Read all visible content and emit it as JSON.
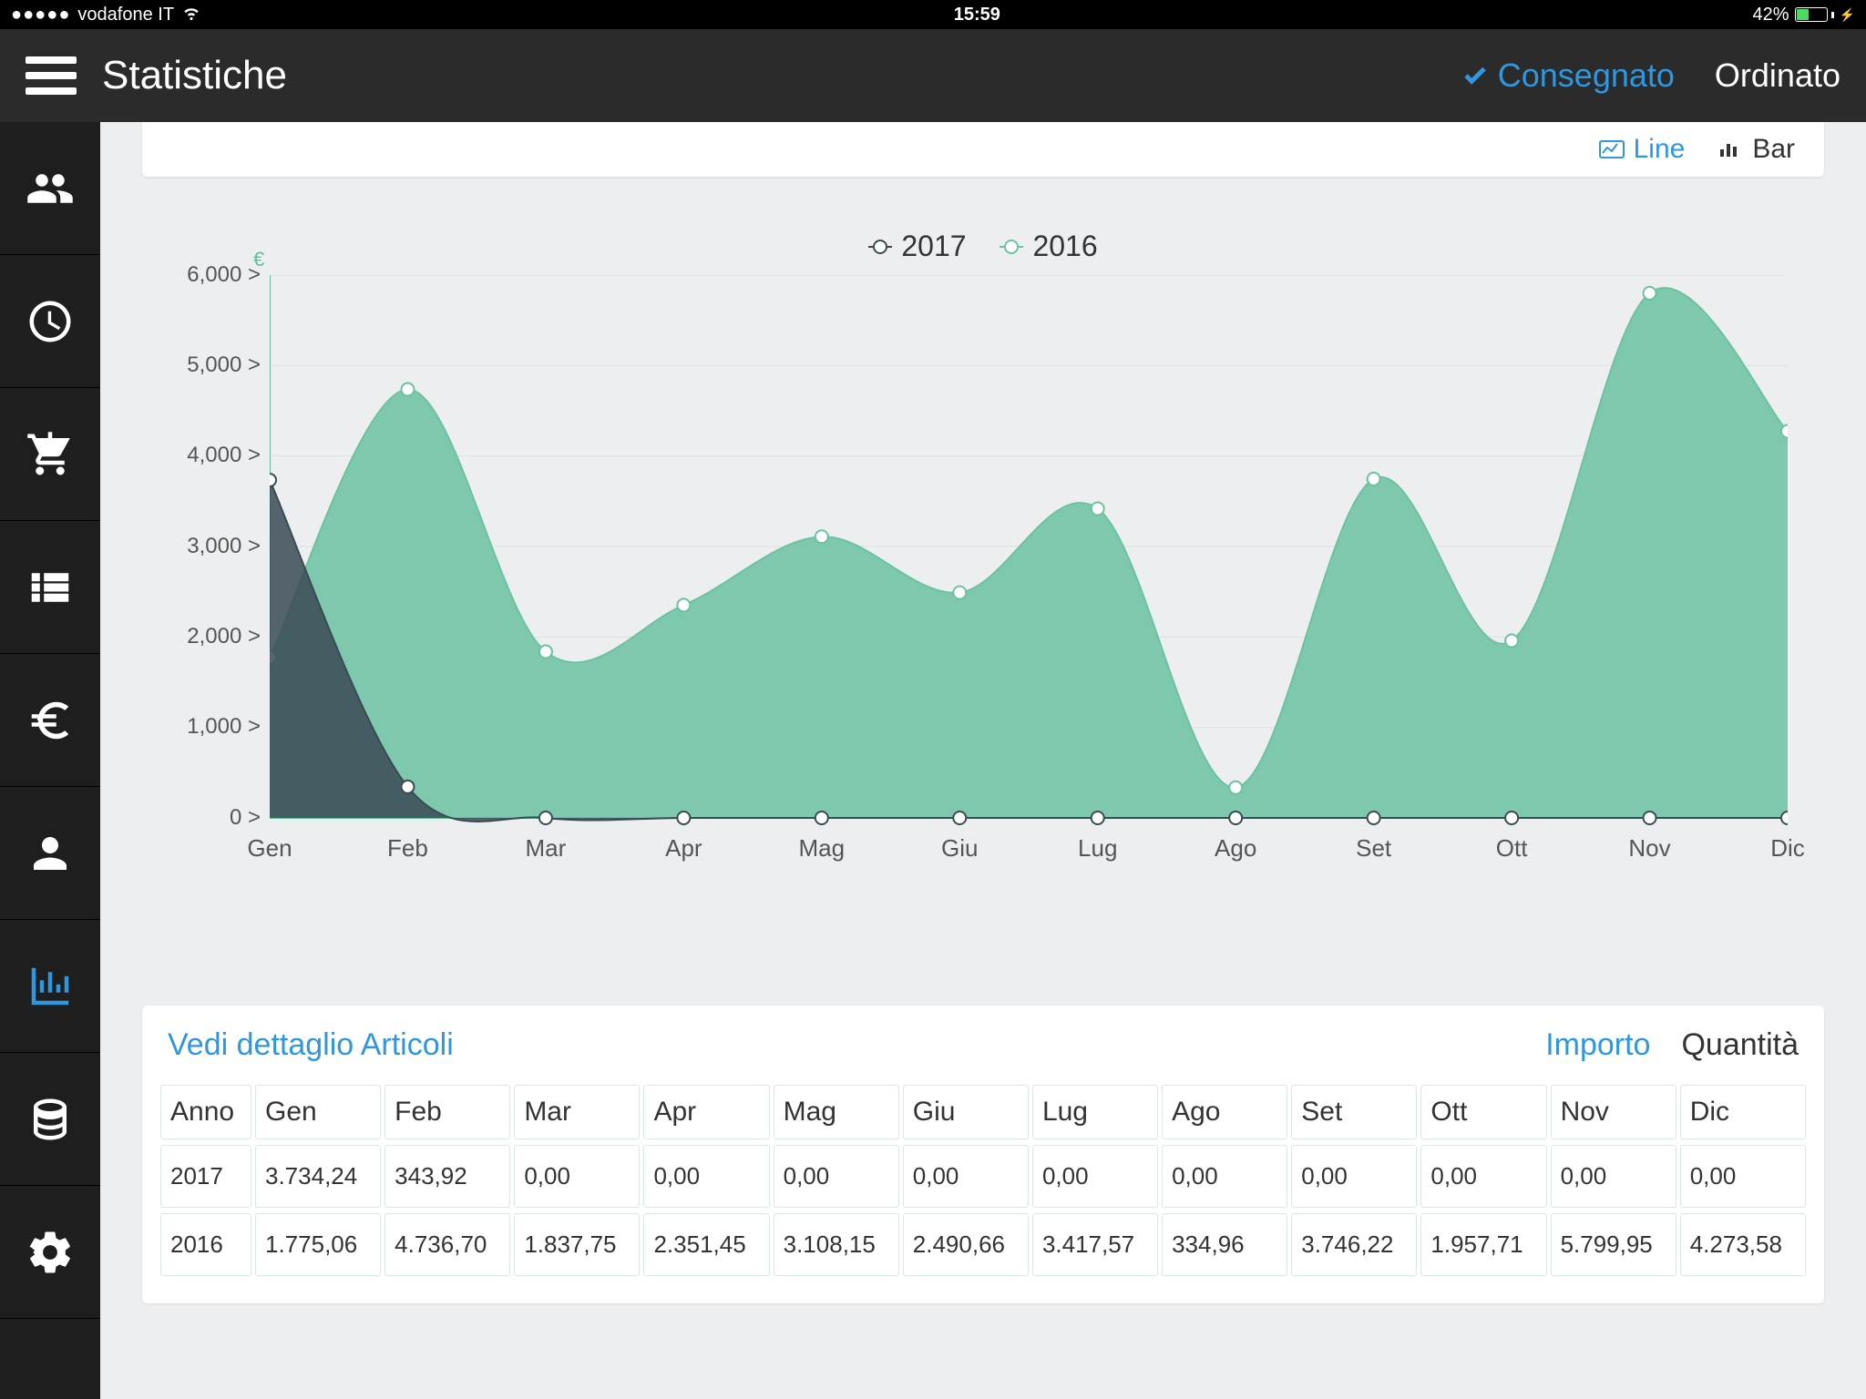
{
  "status_bar": {
    "signal_dots": "●●●●●",
    "carrier": "vodafone IT",
    "time": "15:59",
    "battery_pct": "42%",
    "battery_fill_pct": 42
  },
  "header": {
    "title": "Statistiche",
    "filter_active": "Consegnato",
    "filter_inactive": "Ordinato"
  },
  "view_toggle": {
    "line": "Line",
    "bar": "Bar"
  },
  "chart": {
    "type": "area-line",
    "currency_symbol": "€",
    "legend": [
      {
        "label": "2017",
        "color": "#3a4a55",
        "fill": "#3a4a55",
        "fill_opacity": 0.85
      },
      {
        "label": "2016",
        "color": "#6bc2a1",
        "fill": "#6bc2a1",
        "fill_opacity": 0.85
      }
    ],
    "y_axis": {
      "min": 0,
      "max": 6000,
      "step": 1000,
      "ticks": [
        "0 >",
        "1,000 >",
        "2,000 >",
        "3,000 >",
        "4,000 >",
        "5,000 >",
        "6,000 >"
      ],
      "label_color": "#555",
      "label_fontsize": 24
    },
    "x_axis": {
      "categories": [
        "Gen",
        "Feb",
        "Mar",
        "Apr",
        "Mag",
        "Giu",
        "Lug",
        "Ago",
        "Set",
        "Ott",
        "Nov",
        "Dic"
      ],
      "label_color": "#555",
      "label_fontsize": 26
    },
    "series": {
      "2017": [
        3734.24,
        343.92,
        0,
        0,
        0,
        0,
        0,
        0,
        0,
        0,
        0,
        0
      ],
      "2016": [
        1775.06,
        4736.7,
        1837.75,
        2351.45,
        3108.15,
        2490.66,
        3417.57,
        334.96,
        3746.22,
        1957.71,
        5799.95,
        4273.58
      ]
    },
    "background_color": "#eceef0",
    "grid_color": "#e0e0e0",
    "axis_line_color": "#5fc09a",
    "marker_style": "circle",
    "marker_size": 7,
    "line_width": 2
  },
  "table": {
    "detail_link": "Vedi dettaglio Articoli",
    "tabs": {
      "active": "Importo",
      "inactive": "Quantità"
    },
    "columns": [
      "Anno",
      "Gen",
      "Feb",
      "Mar",
      "Apr",
      "Mag",
      "Giu",
      "Lug",
      "Ago",
      "Set",
      "Ott",
      "Nov",
      "Dic"
    ],
    "rows": [
      [
        "2017",
        "3.734,24",
        "343,92",
        "0,00",
        "0,00",
        "0,00",
        "0,00",
        "0,00",
        "0,00",
        "0,00",
        "0,00",
        "0,00",
        "0,00"
      ],
      [
        "2016",
        "1.775,06",
        "4.736,70",
        "1.837,75",
        "2.351,45",
        "3.108,15",
        "2.490,66",
        "3.417,57",
        "334,96",
        "3.746,22",
        "1.957,71",
        "5.799,95",
        "4.273,58"
      ]
    ]
  },
  "colors": {
    "accent": "#2f97e0",
    "header_bg": "#2b2b2b",
    "sidebar_bg": "#1e1e1e",
    "content_bg": "#eceef0",
    "card_bg": "#ffffff",
    "series_2016": "#6bc2a1",
    "series_2017": "#3a4a55"
  }
}
